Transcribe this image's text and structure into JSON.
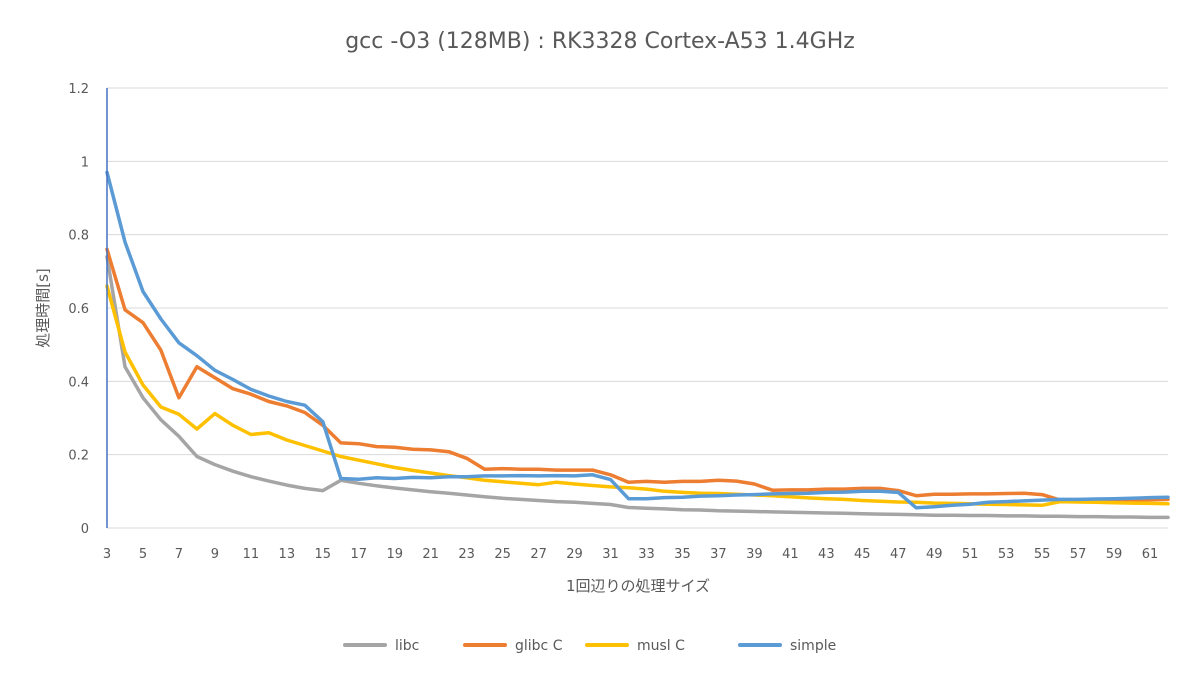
{
  "chart_data": {
    "type": "line",
    "title": "gcc -O3 (128MB) : RK3328 Cortex-A53 1.4GHz",
    "xlabel": "1回辺りの処理サイズ",
    "ylabel": "処理時間[s]",
    "ylim": [
      0,
      1.2
    ],
    "yticks": [
      "0",
      "0.2",
      "0.4",
      "0.6",
      "0.8",
      "1",
      "1.2"
    ],
    "xlim": [
      3,
      62
    ],
    "xticks": [
      "3",
      "5",
      "7",
      "9",
      "11",
      "13",
      "15",
      "17",
      "19",
      "21",
      "23",
      "25",
      "27",
      "29",
      "31",
      "33",
      "35",
      "37",
      "39",
      "41",
      "43",
      "45",
      "47",
      "49",
      "51",
      "53",
      "55",
      "57",
      "59",
      "61"
    ],
    "grid": "horizontal",
    "legend_position": "bottom",
    "x": [
      3,
      4,
      5,
      6,
      7,
      8,
      9,
      10,
      11,
      12,
      13,
      14,
      15,
      16,
      17,
      18,
      19,
      20,
      21,
      22,
      23,
      24,
      25,
      26,
      27,
      28,
      29,
      30,
      31,
      32,
      33,
      34,
      35,
      36,
      37,
      38,
      39,
      40,
      41,
      42,
      43,
      44,
      45,
      46,
      47,
      48,
      49,
      50,
      51,
      52,
      53,
      54,
      55,
      56,
      57,
      58,
      59,
      60,
      61,
      62
    ],
    "series": [
      {
        "name": "libc",
        "color": "#a5a5a5",
        "values": [
          0.74,
          0.44,
          0.355,
          0.295,
          0.25,
          0.195,
          0.173,
          0.155,
          0.14,
          0.128,
          0.117,
          0.108,
          0.102,
          0.13,
          0.122,
          0.115,
          0.109,
          0.104,
          0.099,
          0.095,
          0.09,
          0.085,
          0.081,
          0.078,
          0.075,
          0.072,
          0.07,
          0.067,
          0.064,
          0.056,
          0.054,
          0.052,
          0.05,
          0.049,
          0.047,
          0.046,
          0.045,
          0.044,
          0.043,
          0.042,
          0.041,
          0.04,
          0.039,
          0.038,
          0.037,
          0.036,
          0.035,
          0.035,
          0.034,
          0.034,
          0.033,
          0.033,
          0.032,
          0.032,
          0.031,
          0.031,
          0.03,
          0.03,
          0.029,
          0.029
        ]
      },
      {
        "name": "glibc C",
        "color": "#ed7d31",
        "values": [
          0.76,
          0.595,
          0.56,
          0.485,
          0.355,
          0.44,
          0.41,
          0.38,
          0.365,
          0.345,
          0.333,
          0.315,
          0.28,
          0.232,
          0.23,
          0.222,
          0.22,
          0.215,
          0.213,
          0.208,
          0.19,
          0.16,
          0.162,
          0.16,
          0.16,
          0.158,
          0.158,
          0.158,
          0.145,
          0.125,
          0.127,
          0.125,
          0.127,
          0.127,
          0.13,
          0.128,
          0.12,
          0.103,
          0.104,
          0.104,
          0.106,
          0.106,
          0.108,
          0.108,
          0.102,
          0.088,
          0.092,
          0.092,
          0.093,
          0.093,
          0.094,
          0.095,
          0.091,
          0.076,
          0.076,
          0.076,
          0.077,
          0.077,
          0.077,
          0.078
        ]
      },
      {
        "name": "musl C",
        "color": "#ffc000",
        "values": [
          0.66,
          0.48,
          0.39,
          0.33,
          0.31,
          0.27,
          0.312,
          0.28,
          0.255,
          0.26,
          0.24,
          0.225,
          0.21,
          0.195,
          0.185,
          0.175,
          0.165,
          0.157,
          0.15,
          0.143,
          0.137,
          0.13,
          0.126,
          0.122,
          0.118,
          0.125,
          0.12,
          0.116,
          0.112,
          0.11,
          0.106,
          0.1,
          0.097,
          0.095,
          0.094,
          0.092,
          0.09,
          0.088,
          0.085,
          0.082,
          0.08,
          0.078,
          0.075,
          0.073,
          0.071,
          0.07,
          0.068,
          0.067,
          0.066,
          0.065,
          0.064,
          0.063,
          0.062,
          0.072,
          0.071,
          0.07,
          0.069,
          0.068,
          0.067,
          0.066
        ]
      },
      {
        "name": "simple",
        "color": "#5b9bd5",
        "values": [
          0.97,
          0.78,
          0.645,
          0.57,
          0.505,
          0.47,
          0.43,
          0.405,
          0.378,
          0.36,
          0.345,
          0.335,
          0.29,
          0.135,
          0.133,
          0.137,
          0.135,
          0.138,
          0.137,
          0.14,
          0.14,
          0.142,
          0.142,
          0.143,
          0.142,
          0.143,
          0.142,
          0.145,
          0.132,
          0.08,
          0.08,
          0.083,
          0.084,
          0.087,
          0.088,
          0.09,
          0.091,
          0.093,
          0.094,
          0.095,
          0.097,
          0.098,
          0.1,
          0.1,
          0.097,
          0.055,
          0.058,
          0.062,
          0.065,
          0.07,
          0.072,
          0.074,
          0.076,
          0.078,
          0.078,
          0.079,
          0.08,
          0.081,
          0.083,
          0.084
        ]
      }
    ]
  }
}
